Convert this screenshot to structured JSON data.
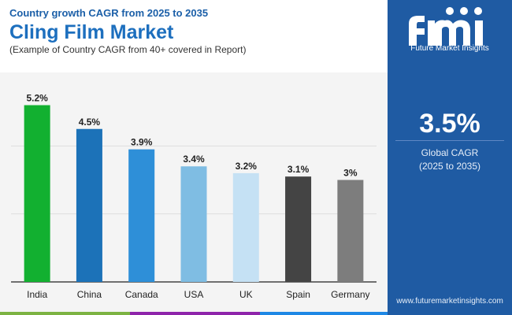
{
  "header": {
    "kicker": "Country growth CAGR from 2025 to 2035",
    "title": "Cling Film Market",
    "subtitle": "(Example of Country CAGR from 40+ covered in Report)"
  },
  "sidebar": {
    "brand_name": "Future Market Insights",
    "global_cagr_value": "3.5%",
    "global_cagr_label": "Global CAGR",
    "global_cagr_period": "(2025 to 2035)",
    "website": "www.futuremarketinsights.com"
  },
  "colors": {
    "title": "#1d6fbe",
    "sidebar_bg": "#1f5ba3",
    "strip": [
      "#7cb342",
      "#8e24aa",
      "#1e88e5"
    ]
  },
  "chart_data": {
    "type": "bar",
    "title": "Cling Film Market",
    "xlabel": "",
    "ylabel": "",
    "ylim": [
      0,
      6
    ],
    "grid": true,
    "categories": [
      "India",
      "China",
      "Canada",
      "USA",
      "UK",
      "Spain",
      "Germany"
    ],
    "values": [
      5.2,
      4.5,
      3.9,
      3.4,
      3.2,
      3.1,
      3.0
    ],
    "labels": [
      "5.2%",
      "4.5%",
      "3.9%",
      "3.4%",
      "3.2%",
      "3.1%",
      "3%"
    ],
    "colors": [
      "#12b030",
      "#1c72b8",
      "#2e8fd8",
      "#7fbde3",
      "#c5e1f4",
      "#444444",
      "#7d7d7d"
    ]
  }
}
